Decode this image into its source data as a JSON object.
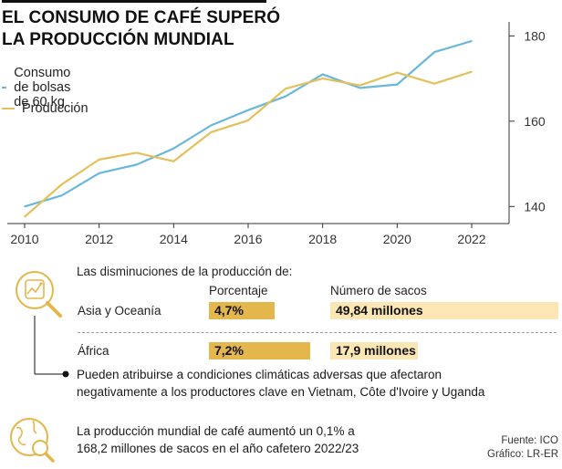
{
  "title_line1": "EL CONSUMO DE CAFÉ SUPERÓ",
  "title_line2": "LA PRODUCCIÓN MUNDIAL",
  "chart_data": {
    "type": "line",
    "x": [
      2010,
      2011,
      2012,
      2013,
      2014,
      2015,
      2016,
      2017,
      2018,
      2019,
      2020,
      2021,
      2022
    ],
    "x_ticks": [
      "2010",
      "2012",
      "2014",
      "2016",
      "2018",
      "2020",
      "2022"
    ],
    "y_ticks": [
      "140",
      "160",
      "180"
    ],
    "ylim": [
      136,
      182
    ],
    "xlim": [
      2010,
      2022
    ],
    "grid": false,
    "legend_position": "top-left",
    "series": [
      {
        "name": "Consumo de bolsas de 60 kg",
        "color": "#6ab7dc",
        "values": [
          140.0,
          142.6,
          147.8,
          149.8,
          153.6,
          159.0,
          162.6,
          165.8,
          171.0,
          167.8,
          168.6,
          176.2,
          178.8
        ]
      },
      {
        "name": "Producción",
        "color": "#e3c15a",
        "values": [
          137.6,
          145.2,
          151.0,
          152.6,
          150.6,
          157.4,
          160.2,
          167.6,
          170.0,
          168.4,
          171.4,
          168.8,
          171.6
        ]
      }
    ]
  },
  "info": {
    "heading": "Las disminuciones de la producción de:",
    "col_pct": "Porcentaje",
    "col_sacos": "Número de sacos",
    "rows": [
      {
        "region": "Asia y Oceanía",
        "pct": "4,7%",
        "pct_value": 4.7,
        "sacos": "49,84 millones",
        "sacos_value": 49.84
      },
      {
        "region": "África",
        "pct": "7,2%",
        "pct_value": 7.2,
        "sacos": "17,9 millones",
        "sacos_value": 17.9
      }
    ],
    "note_line1": "Pueden atribuirse a condiciones climáticas adversas que afectaron",
    "note_line2": "negativamente a los productores clave en Vietnam, Côte d'Ivoire y Uganda",
    "footer_line1": "La producción mundial de café aumentó un 0,1% a",
    "footer_line2": "168,2 millones de sacos en el año cafetero 2022/23",
    "source": "Fuente: ICO",
    "credit": "Gráfico: LR-ER"
  },
  "colors": {
    "consumo": "#6ab7dc",
    "produccion": "#e3c15a",
    "bar_fill": "#e3b74b",
    "bar_track": "#fbe6b4",
    "icon": "#e3b74b"
  },
  "icons": [
    "coffee-bean-chart-icon",
    "globe-magnifier-icon"
  ]
}
